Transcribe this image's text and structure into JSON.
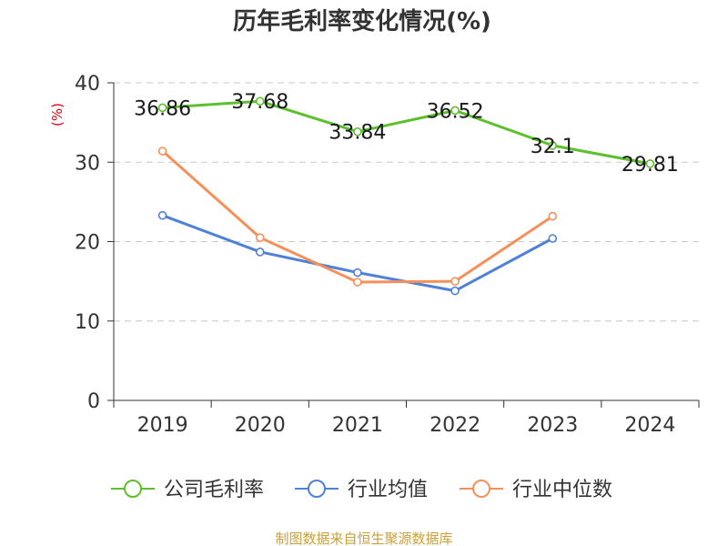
{
  "chart_data": {
    "type": "line",
    "title": "历年毛利率变化情况(%)",
    "unit_label": "(%)",
    "categories": [
      "2019",
      "2020",
      "2021",
      "2022",
      "2023",
      "2024"
    ],
    "ylim": [
      0,
      40
    ],
    "yticks": [
      0,
      10,
      20,
      30,
      40
    ],
    "grid": true,
    "legend_position": "bottom",
    "series": [
      {
        "name": "公司毛利率",
        "color": "#5cc02c",
        "values": [
          36.86,
          37.68,
          33.84,
          36.52,
          32.1,
          29.81
        ],
        "labels": [
          "36.86",
          "37.68",
          "33.84",
          "36.52",
          "32.1",
          "29.81"
        ]
      },
      {
        "name": "行业均值",
        "color": "#4f81d6",
        "values": [
          23.3,
          18.7,
          16.1,
          13.8,
          20.4,
          null
        ]
      },
      {
        "name": "行业中位数",
        "color": "#f5905a",
        "values": [
          31.4,
          20.5,
          14.9,
          15.0,
          23.2,
          null
        ]
      }
    ],
    "source": "制图数据来自恒生聚源数据库"
  }
}
